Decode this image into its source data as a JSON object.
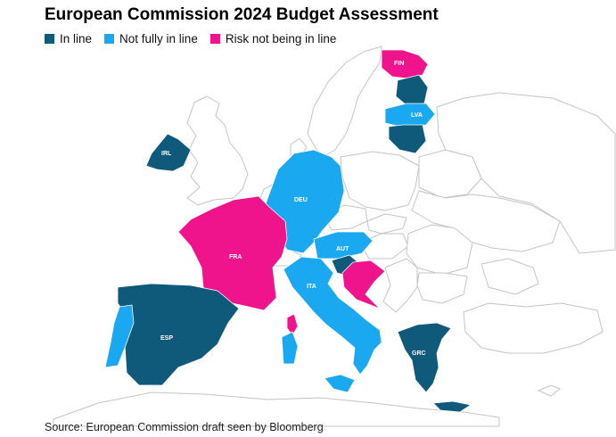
{
  "title": "European Commission 2024 Budget Assessment",
  "legend": [
    {
      "label": "In line",
      "color": "#0f5a7a"
    },
    {
      "label": "Not fully in line",
      "color": "#1aa9f0"
    },
    {
      "label": "Risk not being in line",
      "color": "#f0148c"
    }
  ],
  "countries": [
    {
      "code": "FIN",
      "status": "Risk not being in line"
    },
    {
      "code": "LVA",
      "status": "Not fully in line"
    },
    {
      "code": "IRL",
      "status": "In line"
    },
    {
      "code": "DEU",
      "status": "Not fully in line"
    },
    {
      "code": "AUT",
      "status": "Not fully in line"
    },
    {
      "code": "FRA",
      "status": "Risk not being in line"
    },
    {
      "code": "ITA",
      "status": "Not fully in line"
    },
    {
      "code": "ESP",
      "status": "In line"
    },
    {
      "code": "GRC",
      "status": "In line"
    }
  ],
  "source": "Source: European Commission draft seen by Bloomberg"
}
